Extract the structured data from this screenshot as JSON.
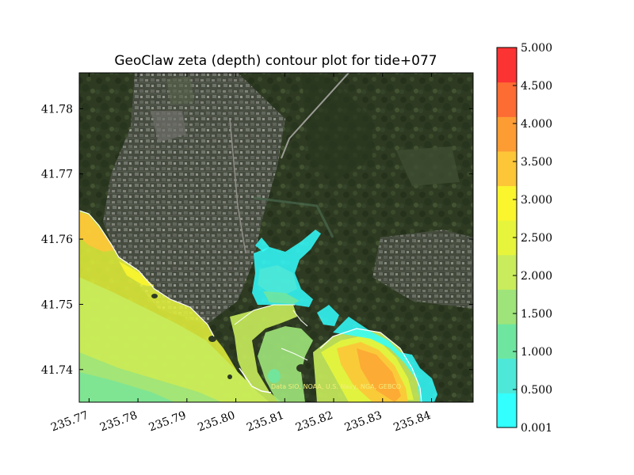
{
  "chart_data": {
    "type": "heatmap",
    "title": "GeoClaw zeta (depth) contour plot for tide+077",
    "xlabel": "",
    "ylabel": "",
    "xlim": [
      235.768,
      235.8485
    ],
    "ylim": [
      41.735,
      41.7855
    ],
    "xticks": [
      {
        "value": 235.77,
        "label": "235.77"
      },
      {
        "value": 235.78,
        "label": "235.78"
      },
      {
        "value": 235.79,
        "label": "235.79"
      },
      {
        "value": 235.8,
        "label": "235.80"
      },
      {
        "value": 235.81,
        "label": "235.81"
      },
      {
        "value": 235.82,
        "label": "235.82"
      },
      {
        "value": 235.83,
        "label": "235.83"
      },
      {
        "value": 235.84,
        "label": "235.84"
      }
    ],
    "yticks": [
      {
        "value": 41.74,
        "label": "41.74"
      },
      {
        "value": 41.75,
        "label": "41.75"
      },
      {
        "value": 41.76,
        "label": "41.76"
      },
      {
        "value": 41.77,
        "label": "41.77"
      },
      {
        "value": 41.78,
        "label": "41.78"
      }
    ],
    "colorbar": {
      "levels": [
        0.001,
        0.5,
        1.0,
        1.5,
        2.0,
        2.5,
        3.0,
        3.5,
        4.0,
        4.5,
        5.0
      ],
      "labels": [
        "0.001",
        "0.500",
        "1.000",
        "1.500",
        "2.000",
        "2.500",
        "3.000",
        "3.500",
        "4.000",
        "4.500",
        "5.000"
      ],
      "colors": [
        "#33ffff",
        "#4de8d8",
        "#6fe6a0",
        "#9ee47a",
        "#c8ec5c",
        "#e6f53c",
        "#fbf52e",
        "#fdc638",
        "#fc9c33",
        "#fc6c33",
        "#fc3333"
      ]
    },
    "basemap_credit": "Data SIO, NOAA, U.S. Navy, NGA, GEBCO",
    "grid": false,
    "legend": "colorbar-right"
  }
}
